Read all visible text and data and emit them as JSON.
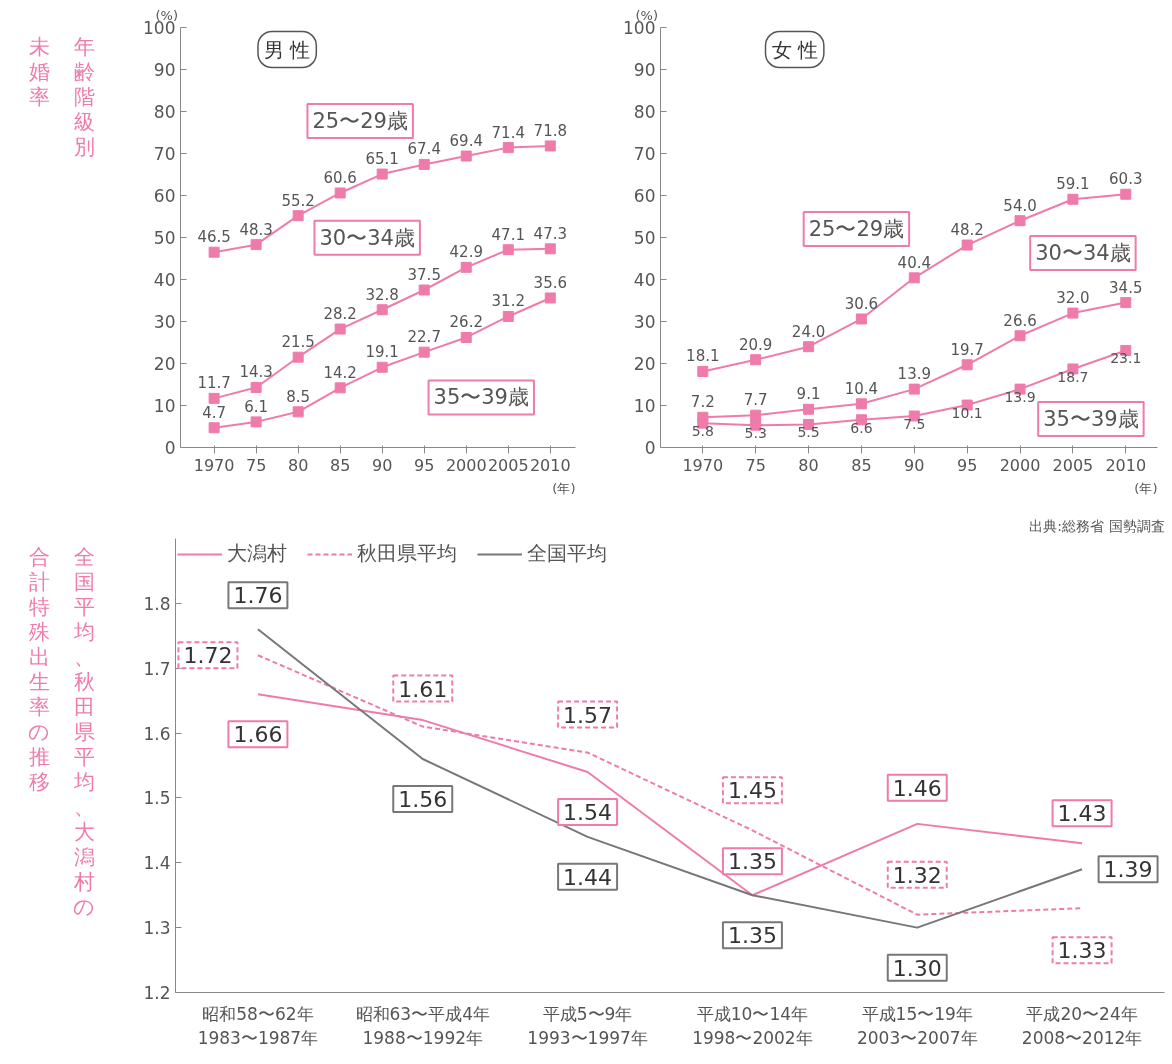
{
  "chart_data": [
    {
      "type": "line",
      "title": "男 性",
      "ylabel": "(%)",
      "xlabel": "(年)",
      "annotations": [
        "年齢階級別未婚率"
      ],
      "x": [
        1970,
        1975,
        1980,
        1985,
        1990,
        1995,
        2000,
        2005,
        2010
      ],
      "xlim": [
        1966,
        2013
      ],
      "xticks": [
        1970,
        {
          "value": 1975,
          "label": "75"
        },
        {
          "value": 1980,
          "label": "80"
        },
        {
          "value": 1985,
          "label": "85"
        },
        {
          "value": 1990,
          "label": "90"
        },
        {
          "value": 1995,
          "label": "95"
        },
        2000,
        2005,
        2010
      ],
      "ylim": [
        0,
        100
      ],
      "yticks": [
        0,
        10,
        20,
        30,
        40,
        50,
        60,
        70,
        80,
        90,
        100
      ],
      "marker": "square",
      "grid": false,
      "data_labels": true,
      "series": [
        {
          "name": "25〜29歳",
          "color": "#ef7bab",
          "values": [
            46.5,
            48.3,
            55.2,
            60.6,
            65.1,
            67.4,
            69.4,
            71.4,
            71.8
          ],
          "value_labels": [
            "46.5",
            "48.3",
            "55.2",
            "60.6",
            "65.1",
            "67.4",
            "69.4",
            "71.4",
            "71.8"
          ]
        },
        {
          "name": "30〜34歳",
          "color": "#ef7bab",
          "values": [
            11.7,
            14.3,
            21.5,
            28.2,
            32.8,
            37.5,
            42.9,
            47.1,
            47.3
          ],
          "value_labels": [
            "11.7",
            "14.3",
            "21.5",
            "28.2",
            "32.8",
            "37.5",
            "42.9",
            "47.1",
            "47.3"
          ]
        },
        {
          "name": "35〜39歳",
          "color": "#ef7bab",
          "values": [
            4.7,
            6.1,
            8.5,
            14.2,
            19.1,
            22.7,
            26.2,
            31.2,
            35.6
          ],
          "value_labels": [
            "4.7",
            "6.1",
            "8.5",
            "14.2",
            "19.1",
            "22.7",
            "26.2",
            "31.2",
            "35.6"
          ]
        }
      ]
    },
    {
      "type": "line",
      "title": "女 性",
      "ylabel": "(%)",
      "xlabel": "(年)",
      "x": [
        1970,
        1975,
        1980,
        1985,
        1990,
        1995,
        2000,
        2005,
        2010
      ],
      "xlim": [
        1966,
        2013
      ],
      "xticks": [
        1970,
        {
          "value": 1975,
          "label": "75"
        },
        {
          "value": 1980,
          "label": "80"
        },
        {
          "value": 1985,
          "label": "85"
        },
        {
          "value": 1990,
          "label": "90"
        },
        {
          "value": 1995,
          "label": "95"
        },
        2000,
        2005,
        2010
      ],
      "ylim": [
        0,
        100
      ],
      "yticks": [
        0,
        10,
        20,
        30,
        40,
        50,
        60,
        70,
        80,
        90,
        100
      ],
      "marker": "square",
      "grid": false,
      "data_labels": true,
      "series": [
        {
          "name": "25〜29歳",
          "color": "#ef7bab",
          "values": [
            18.1,
            20.9,
            24.0,
            30.6,
            40.4,
            48.2,
            54.0,
            59.1,
            60.3
          ],
          "value_labels": [
            "18.1",
            "20.9",
            "24.0",
            "30.6",
            "40.4",
            "48.2",
            "54.0",
            "59.1",
            "60.3"
          ]
        },
        {
          "name": "30〜34歳",
          "color": "#ef7bab",
          "values": [
            7.2,
            7.7,
            9.1,
            10.4,
            13.9,
            19.7,
            26.6,
            32.0,
            34.5
          ],
          "value_labels": [
            "7.2",
            "7.7",
            "9.1",
            "10.4",
            "13.9",
            "19.7",
            "26.6",
            "32.0",
            "34.5"
          ]
        },
        {
          "name": "35〜39歳",
          "color": "#ef7bab",
          "values": [
            5.8,
            5.3,
            5.5,
            6.6,
            7.5,
            10.1,
            13.9,
            18.7,
            23.1
          ],
          "value_labels": [
            "5.8",
            "5.3",
            "5.5",
            "6.6",
            "7.5",
            "10.1",
            "13.9",
            "18.7",
            "23.1"
          ]
        }
      ]
    },
    {
      "type": "line",
      "title": "全国平均、秋田県平均、大潟村の合計特殊出生率の推移",
      "annotations": [
        "出典:総務省 国勢調査"
      ],
      "categories": [
        "昭和58〜62年\n1983〜1987年",
        "昭和63〜平成4年\n1988〜1992年",
        "平成5〜9年\n1993〜1997年",
        "平成10〜14年\n1998〜2002年",
        "平成15〜19年\n2003〜2007年",
        "平成20〜24年\n2008〜2012年"
      ],
      "ylim": [
        1.2,
        1.9
      ],
      "yticks": [
        1.2,
        1.3,
        1.4,
        1.5,
        1.6,
        1.7,
        1.8
      ],
      "grid": false,
      "legend": "top left",
      "series": [
        {
          "name": "大潟村",
          "color": "#ef7bab",
          "line_style": "solid",
          "values": [
            1.66,
            1.62,
            1.54,
            1.35,
            1.46,
            1.43
          ],
          "value_labels": [
            "1.66",
            null,
            "1.54",
            "1.35",
            "1.46",
            "1.43"
          ]
        },
        {
          "name": "秋田県平均",
          "color": "#ef7bab",
          "line_style": "dashed",
          "values": [
            1.72,
            1.61,
            1.57,
            1.45,
            1.32,
            1.33
          ],
          "value_labels": [
            "1.72",
            "1.61",
            "1.57",
            "1.45",
            "1.32",
            "1.33"
          ]
        },
        {
          "name": "全国平均",
          "color": "#777777",
          "line_style": "solid",
          "values": [
            1.76,
            1.56,
            1.44,
            1.35,
            1.3,
            1.39
          ],
          "value_labels": [
            "1.76",
            "1.56",
            "1.44",
            "1.35",
            "1.30",
            "1.39"
          ]
        }
      ]
    }
  ]
}
